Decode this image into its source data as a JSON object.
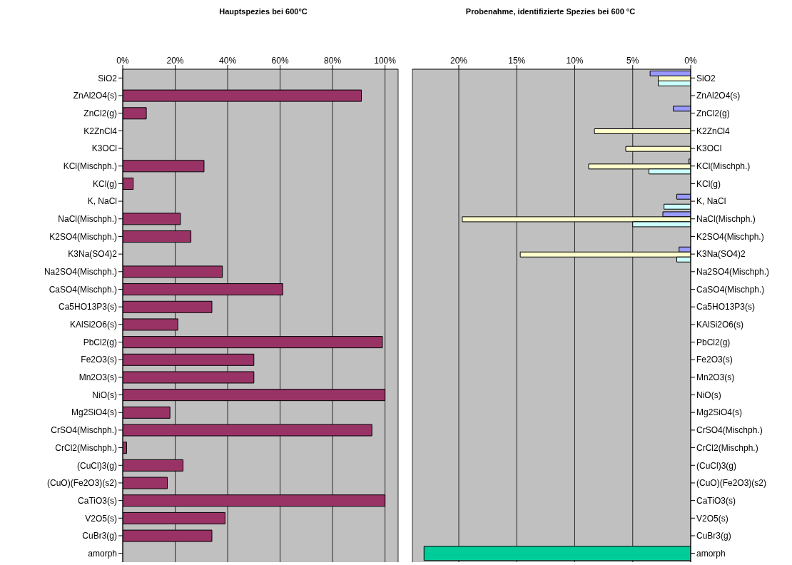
{
  "chart_data": [
    {
      "type": "bar",
      "orientation": "horizontal",
      "title": "Hauptspezies bei 600°C",
      "categories": [
        "SiO2",
        "ZnAl2O4(s)",
        "ZnCl2(g)",
        "K2ZnCl4",
        "K3OCl",
        "KCl(Mischph.)",
        "KCl(g)",
        "K, NaCl",
        "NaCl(Mischph.)",
        "K2SO4(Mischph.)",
        "K3Na(SO4)2",
        "Na2SO4(Mischph.)",
        "CaSO4(Mischph.)",
        "Ca5HO13P3(s)",
        "KAlSi2O6(s)",
        "PbCl2(g)",
        "Fe2O3(s)",
        "Mn2O3(s)",
        "NiO(s)",
        "Mg2SiO4(s)",
        "CrSO4(Mischph.)",
        "CrCl2(Mischph.)",
        "(CuCl)3(g)",
        "(CuO)(Fe2O3)(s2)",
        "CaTiO3(s)",
        "V2O5(s)",
        "CuBr3(g)",
        "amorph"
      ],
      "values": [
        null,
        91,
        9,
        null,
        null,
        31,
        4,
        null,
        22,
        26,
        null,
        38,
        61,
        34,
        21,
        99,
        50,
        50,
        100,
        18,
        95,
        1.5,
        23,
        17,
        100,
        39,
        34,
        null
      ],
      "color": "#993366",
      "xlim": [
        0,
        105
      ],
      "xticks": [
        {
          "value": 0,
          "label": "0%"
        },
        {
          "value": 20,
          "label": "20%"
        },
        {
          "value": 40,
          "label": "40%"
        },
        {
          "value": 60,
          "label": "60%"
        },
        {
          "value": 80,
          "label": "80%"
        },
        {
          "value": 100,
          "label": "100%"
        }
      ],
      "grid": "x"
    },
    {
      "type": "bar",
      "orientation": "horizontal",
      "title": "Probenahme, identifizierte Spezies bei 600 °C",
      "categories": [
        "SiO2",
        "ZnAl2O4(s)",
        "ZnCl2(g)",
        "K2ZnCl4",
        "K3OCl",
        "KCl(Mischph.)",
        "KCl(g)",
        "K, NaCl",
        "NaCl(Mischph.)",
        "K2SO4(Mischph.)",
        "K3Na(SO4)2",
        "Na2SO4(Mischph.)",
        "CaSO4(Mischph.)",
        "Ca5HO13P3(s)",
        "KAlSi2O6(s)",
        "PbCl2(g)",
        "Fe2O3(s)",
        "Mn2O3(s)",
        "NiO(s)",
        "Mg2SiO4(s)",
        "CrSO4(Mischph.)",
        "CrCl2(Mischph.)",
        "(CuCl)3(g)",
        "(CuO)(Fe2O3)(s2)",
        "CaTiO3(s)",
        "V2O5(s)",
        "CuBr3(g)",
        "amorph"
      ],
      "series": [
        {
          "color": "#9999ff",
          "values": [
            3.5,
            null,
            1.5,
            null,
            null,
            0.15,
            null,
            1.2,
            2.4,
            null,
            1.0,
            null,
            null,
            null,
            null,
            null,
            null,
            null,
            null,
            null,
            null,
            null,
            null,
            null,
            null,
            null,
            null,
            null
          ]
        },
        {
          "color": "#ffffcc",
          "values": [
            2.8,
            null,
            null,
            8.3,
            5.6,
            8.8,
            null,
            null,
            19.7,
            null,
            14.7,
            null,
            null,
            null,
            null,
            null,
            null,
            null,
            null,
            null,
            null,
            null,
            null,
            null,
            null,
            null,
            null,
            null
          ]
        },
        {
          "color": "#ccffff",
          "values": [
            2.8,
            null,
            null,
            null,
            null,
            3.6,
            null,
            2.3,
            5,
            null,
            1.2,
            null,
            null,
            null,
            null,
            null,
            null,
            null,
            null,
            null,
            null,
            null,
            null,
            null,
            null,
            null,
            null,
            null
          ]
        },
        {
          "color": "#00cc99",
          "values": [
            null,
            null,
            null,
            null,
            null,
            null,
            null,
            null,
            null,
            null,
            null,
            null,
            null,
            null,
            null,
            null,
            null,
            null,
            null,
            null,
            null,
            null,
            null,
            null,
            null,
            null,
            null,
            23
          ]
        }
      ],
      "xlim": [
        24,
        0
      ],
      "xticks": [
        {
          "value": 20,
          "label": "20%"
        },
        {
          "value": 15,
          "label": "15%"
        },
        {
          "value": 10,
          "label": "10%"
        },
        {
          "value": 5,
          "label": "5%"
        },
        {
          "value": 0,
          "label": "0%"
        }
      ],
      "grid": "x"
    }
  ]
}
